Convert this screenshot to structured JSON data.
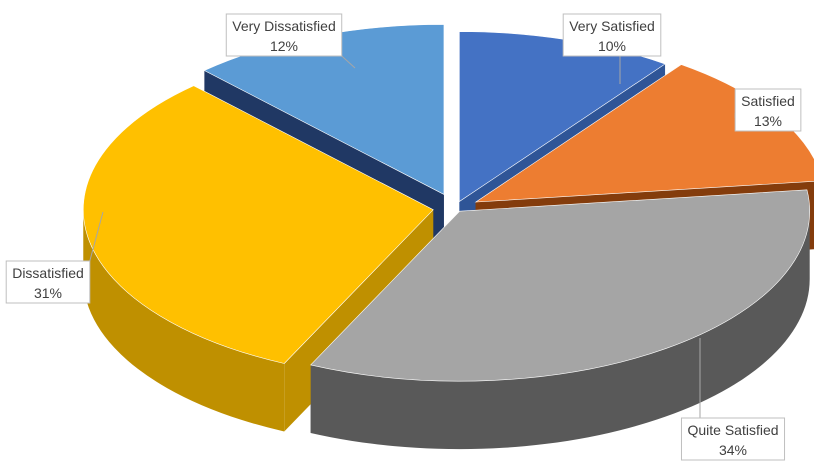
{
  "chart_data": {
    "type": "pie",
    "style": "3d-exploded",
    "title": "",
    "legend": "none",
    "slices": [
      {
        "label": "Very Satisfied",
        "value": 10,
        "display": "10%",
        "color": "#4472C4",
        "side_color": "#2F5597"
      },
      {
        "label": "Satisfied",
        "value": 13,
        "display": "13%",
        "color": "#ED7D31",
        "side_color": "#843C0C"
      },
      {
        "label": "Quite Satisfied",
        "value": 34,
        "display": "34%",
        "color": "#A5A5A5",
        "side_color": "#595959"
      },
      {
        "label": "Dissatisfied",
        "value": 31,
        "display": "31%",
        "color": "#FFC000",
        "side_color": "#BF9000"
      },
      {
        "label": "Very Dissatisfied",
        "value": 12,
        "display": "12%",
        "color": "#5B9BD5",
        "side_color": "#203864"
      }
    ]
  }
}
